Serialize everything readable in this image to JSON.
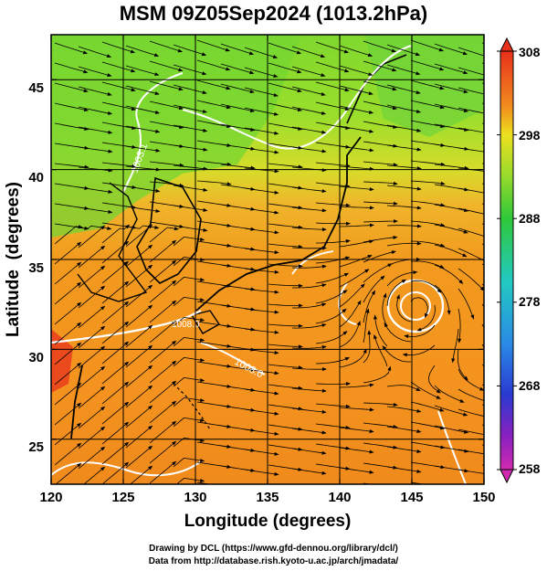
{
  "title": "MSM 09Z05Sep2024 (1013.2hPa)",
  "axes": {
    "xlabel": "Longitude (degrees)",
    "ylabel": "Latitude  (degrees)",
    "xlim": [
      120,
      150
    ],
    "ylim": [
      22.5,
      47.5
    ],
    "xticks": [
      "120",
      "125",
      "130",
      "135",
      "140",
      "145",
      "150"
    ],
    "yticks": [
      "25",
      "30",
      "35",
      "40",
      "45"
    ]
  },
  "colorbar": {
    "min": 258,
    "max": 308,
    "ticks": [
      "308",
      "298",
      "288",
      "278",
      "268",
      "258"
    ]
  },
  "contour_labels": [
    "1003.1",
    "1008.0",
    "1008.0"
  ],
  "footer": {
    "drawing": "Drawing by DCL (https://www.gfd-dennou.org/library/dcl/)",
    "data": "Data from http://database.rish.kyoto-u.ac.jp/arch/jmadata/"
  },
  "colors": {
    "hot": "#e8381c",
    "warm": "#f2921e",
    "mild": "#e8d81e",
    "cool": "#3ccf3c",
    "contour": "#ffffff",
    "coast": "#000000"
  }
}
